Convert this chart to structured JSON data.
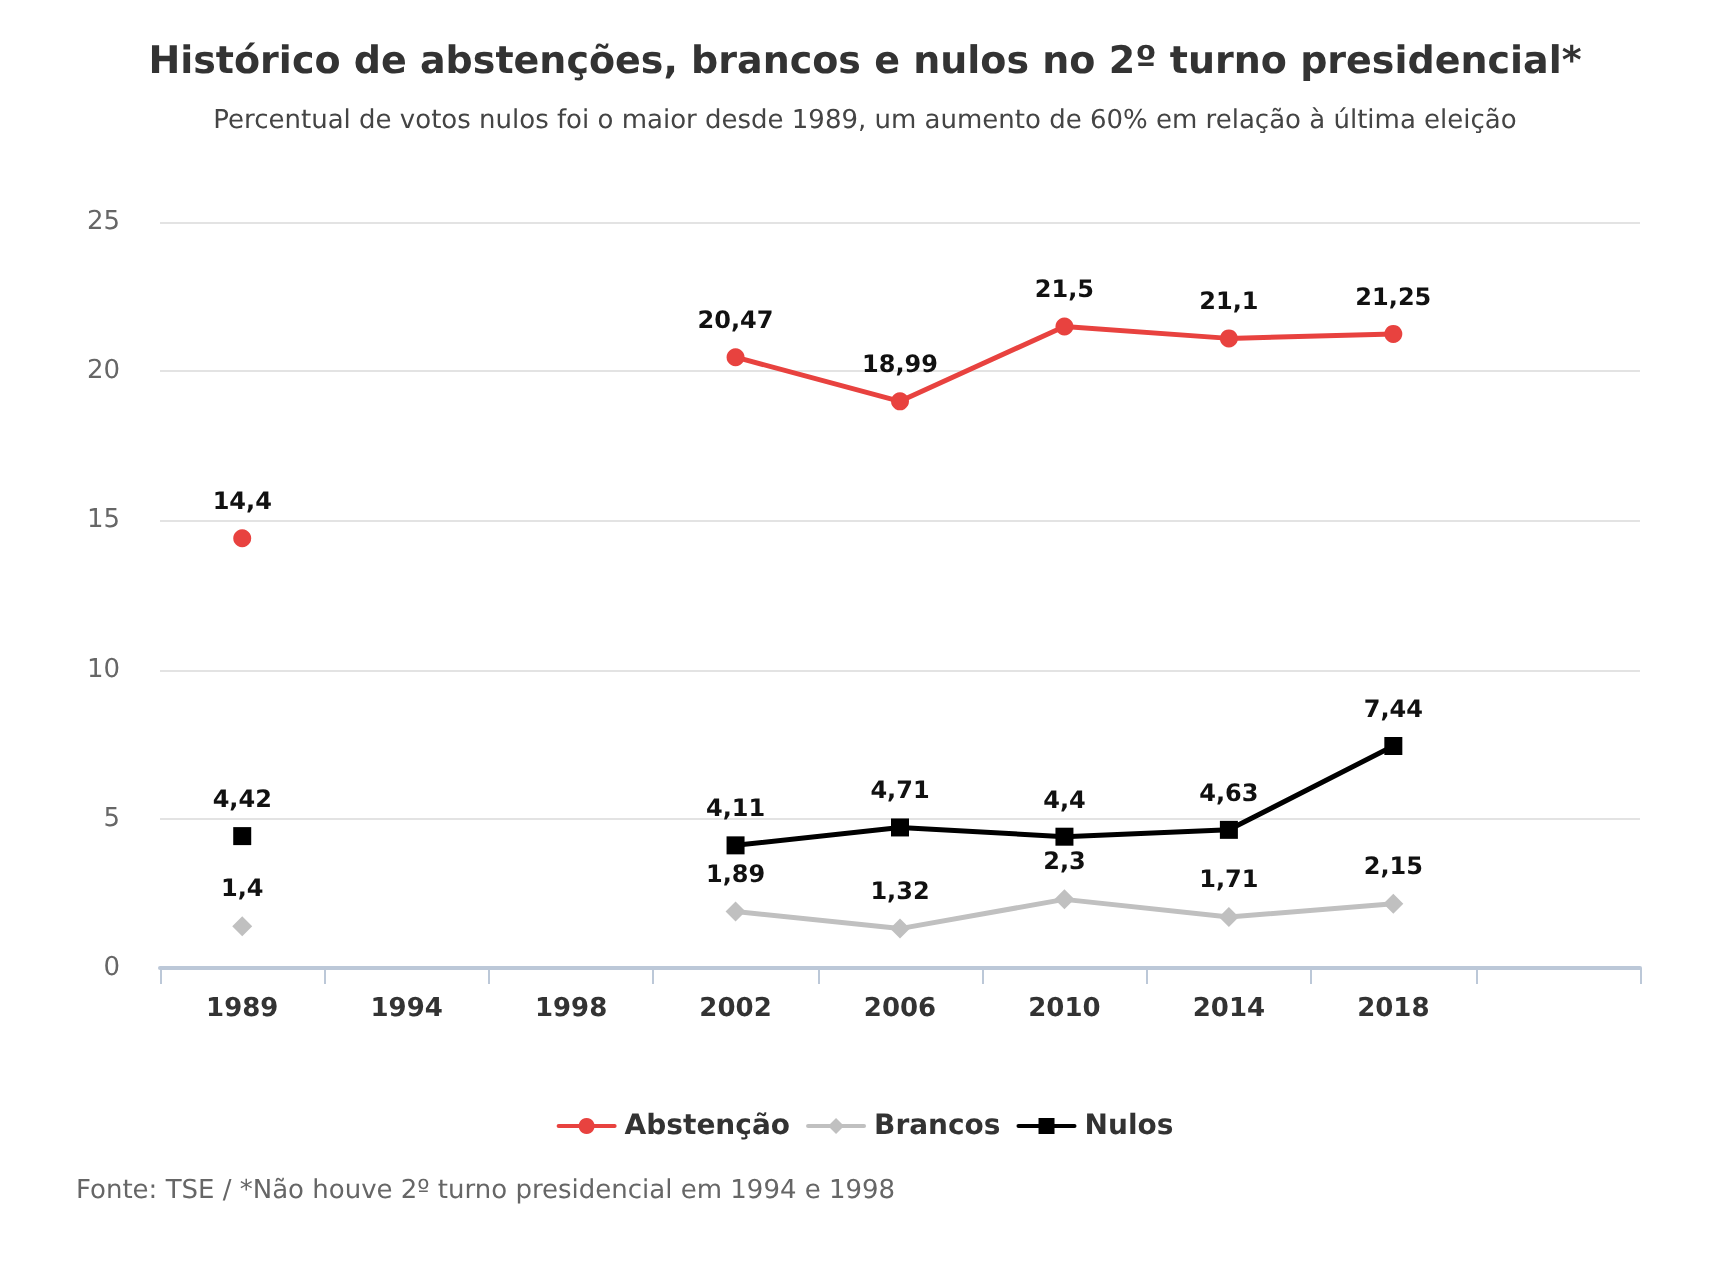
{
  "chart_data": {
    "type": "line",
    "title": "Histórico de abstenções, brancos e nulos no 2º turno presidencial*",
    "subtitle": "Percentual de votos nulos foi o maior desde 1989, um aumento de 60% em relação à última eleição",
    "categories": [
      "1989",
      "1994",
      "1998",
      "2002",
      "2006",
      "2010",
      "2014",
      "2018",
      null
    ],
    "series": [
      {
        "name": "Abstenção",
        "color": "#e8423f",
        "marker": "circle",
        "values": [
          14.4,
          null,
          null,
          20.47,
          18.99,
          21.5,
          21.1,
          21.25,
          null
        ],
        "value_labels": [
          "14,4",
          null,
          null,
          "20,47",
          "18,99",
          "21,5",
          "21,1",
          "21,25",
          null
        ]
      },
      {
        "name": "Brancos",
        "color": "#c0c0c0",
        "marker": "diamond",
        "values": [
          1.4,
          null,
          null,
          1.89,
          1.32,
          2.3,
          1.71,
          2.15,
          null
        ],
        "value_labels": [
          "1,4",
          null,
          null,
          "1,89",
          "1,32",
          "2,3",
          "1,71",
          "2,15",
          null
        ]
      },
      {
        "name": "Nulos",
        "color": "#000000",
        "marker": "square",
        "values": [
          4.42,
          null,
          null,
          4.11,
          4.71,
          4.4,
          4.63,
          7.44,
          null
        ],
        "value_labels": [
          "4,42",
          null,
          null,
          "4,11",
          "4,71",
          "4,4",
          "4,63",
          "7,44",
          null
        ]
      }
    ],
    "ylim": [
      0,
      25
    ],
    "yticks": [
      0,
      5,
      10,
      15,
      20,
      25
    ],
    "grid": "y",
    "legend": "bottom",
    "line_style": "solid",
    "annotations": [
      "Fonte: TSE / *Não houve 2º turno presidencial em 1994 e 1998"
    ]
  }
}
